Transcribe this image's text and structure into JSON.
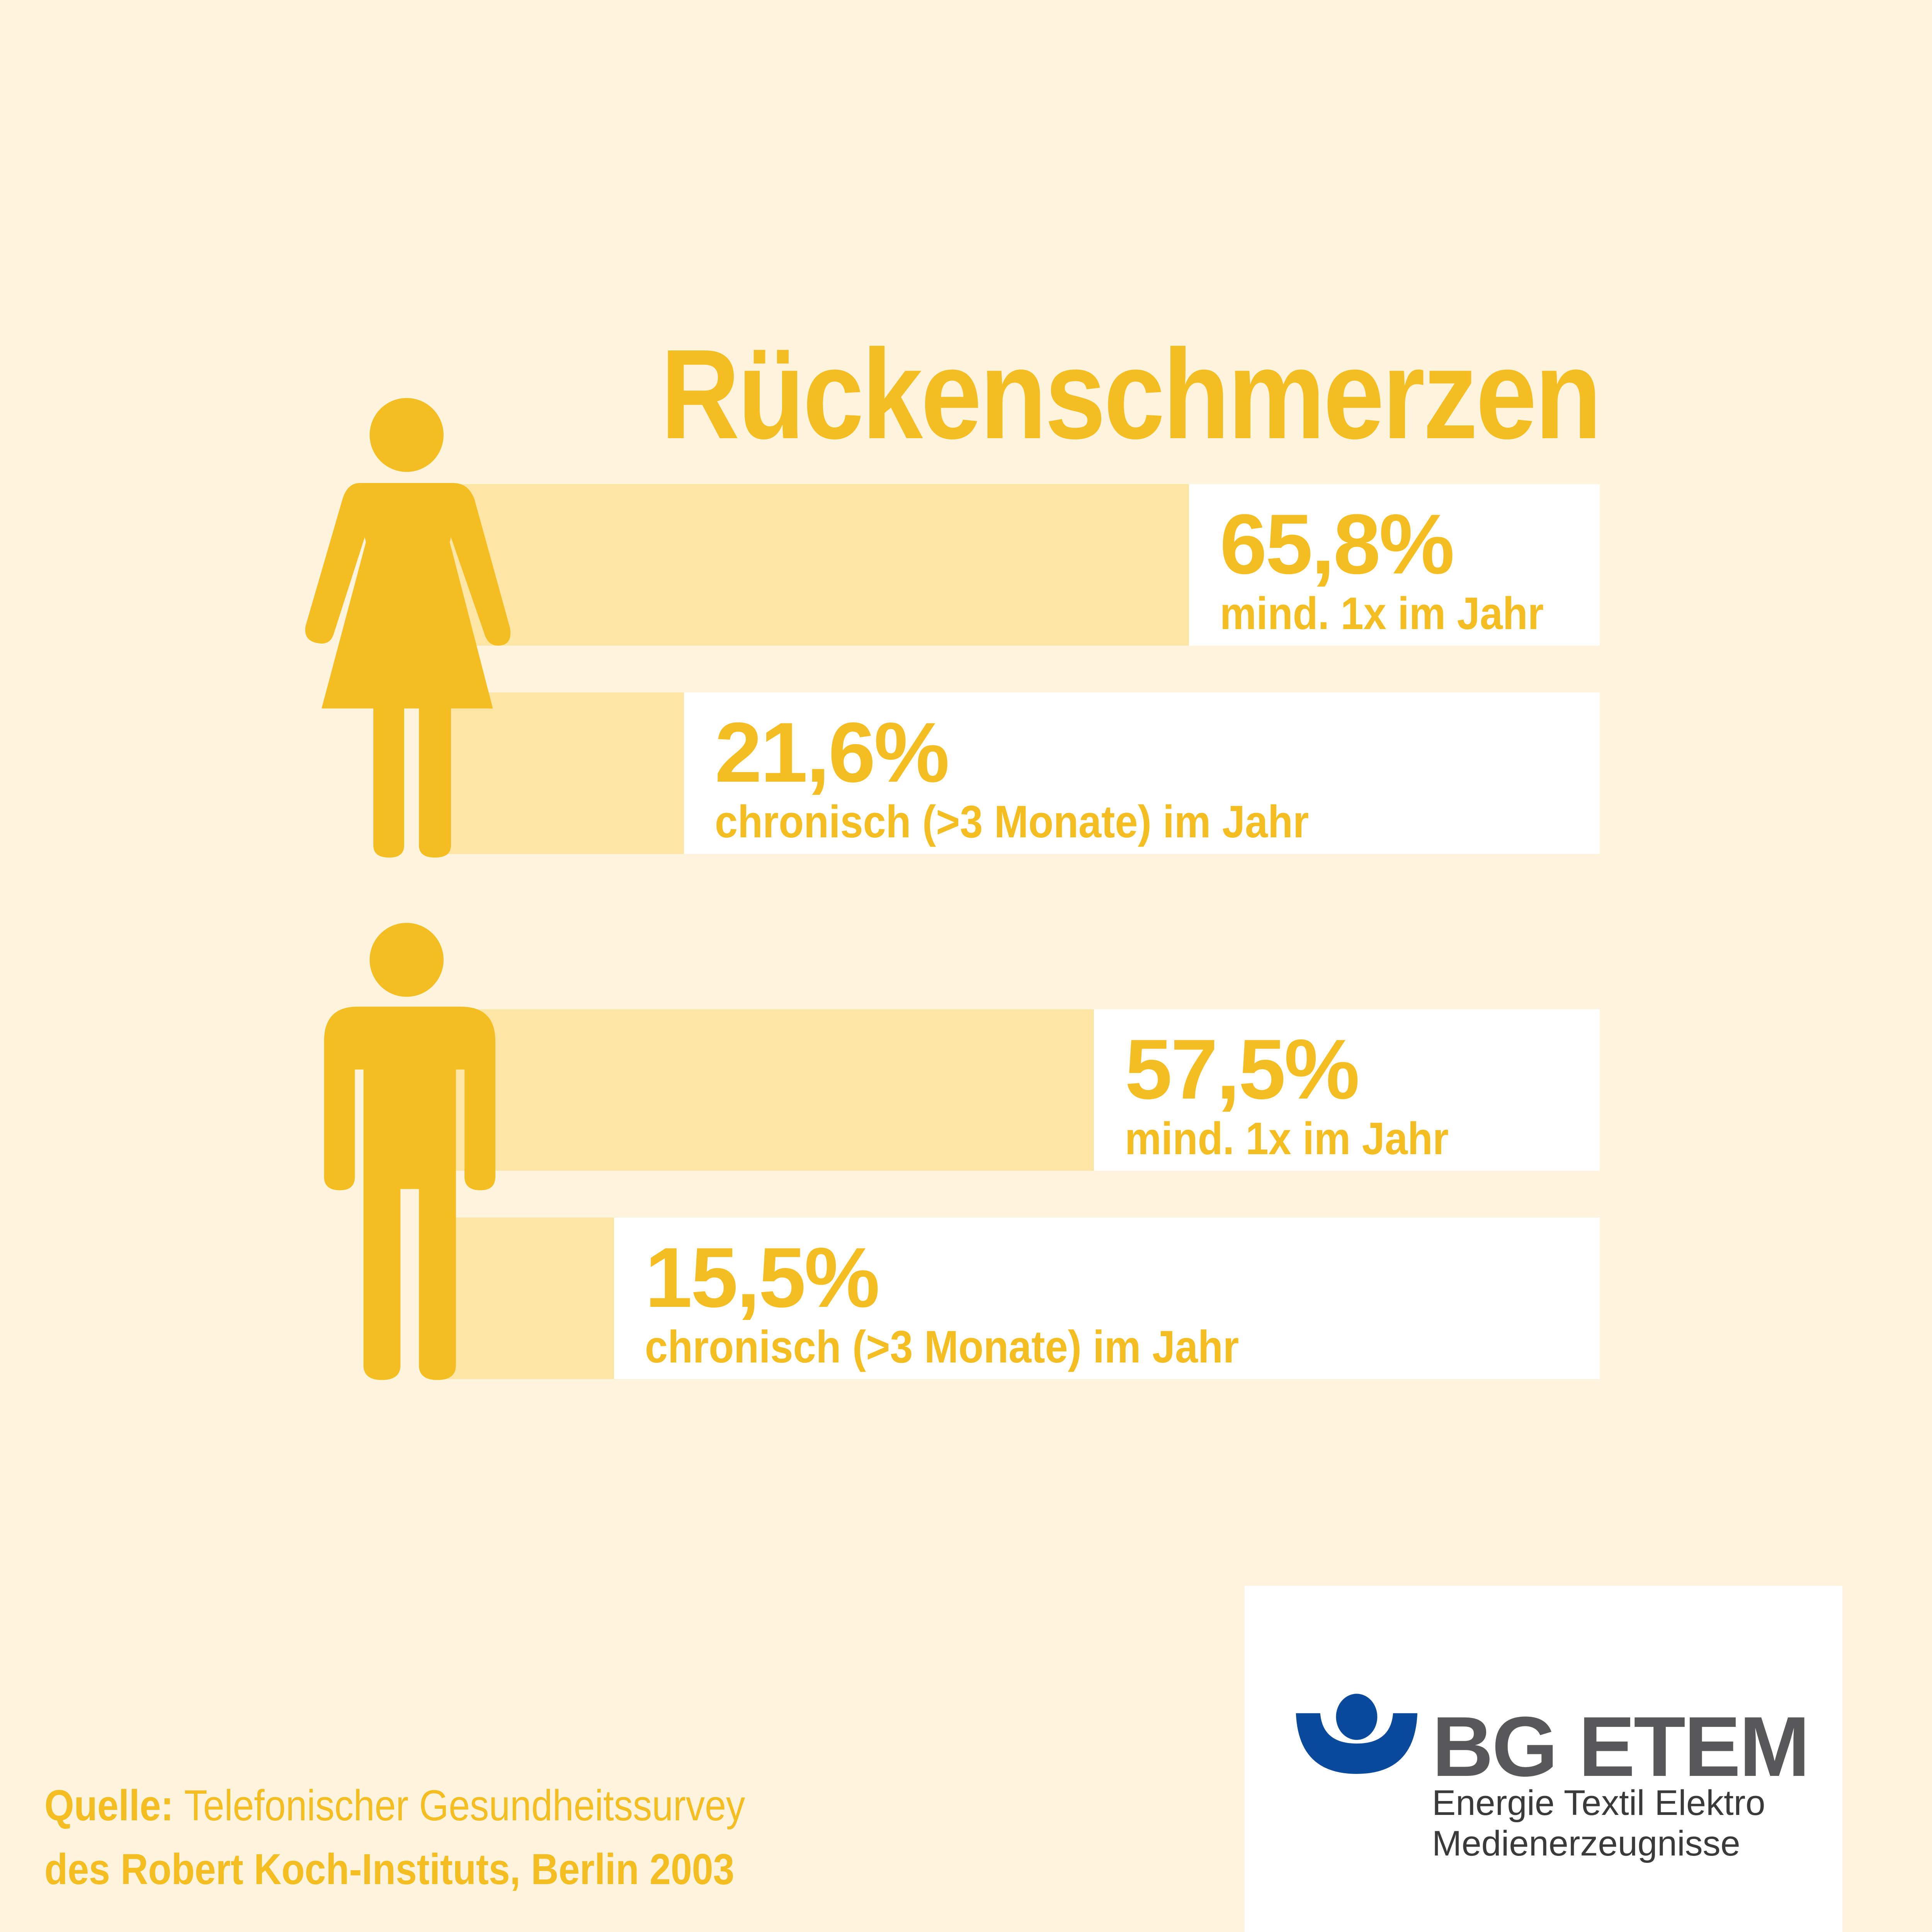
{
  "title": "Rückenschmerzen",
  "colors": {
    "background": "#fef3dc",
    "accent": "#f4bd21",
    "bar_fill": "#fde5a6",
    "bar_track": "#ffffff",
    "logo_blue": "#0a4a9d",
    "logo_gray": "#58575a"
  },
  "chart_data": {
    "type": "bar",
    "title": "Rückenschmerzen",
    "orientation": "horizontal",
    "unit": "%",
    "xlim": [
      0,
      100
    ],
    "grid": false,
    "groups": [
      {
        "icon": "female-figure-icon",
        "bars": [
          {
            "value_label": "65,8%",
            "value": 65.8,
            "label": "mind. 1x im Jahr"
          },
          {
            "value_label": "21,6%",
            "value": 21.6,
            "label": "chronisch (>3 Monate) im Jahr"
          }
        ]
      },
      {
        "icon": "male-figure-icon",
        "bars": [
          {
            "value_label": "57,5%",
            "value": 57.5,
            "label": "mind. 1x im Jahr"
          },
          {
            "value_label": "15,5%",
            "value": 15.5,
            "label": "chronisch (>3 Monate) im Jahr"
          }
        ]
      }
    ]
  },
  "source": {
    "prefix": "Quelle:",
    "line1": "Telefonischer Gesundheitssurvey",
    "line2": "des Robert Koch-Instituts, Berlin 2003"
  },
  "logo": {
    "name": "BG ETEM",
    "line1": "Energie Textil Elektro",
    "line2": "Medienerzeugnisse"
  }
}
